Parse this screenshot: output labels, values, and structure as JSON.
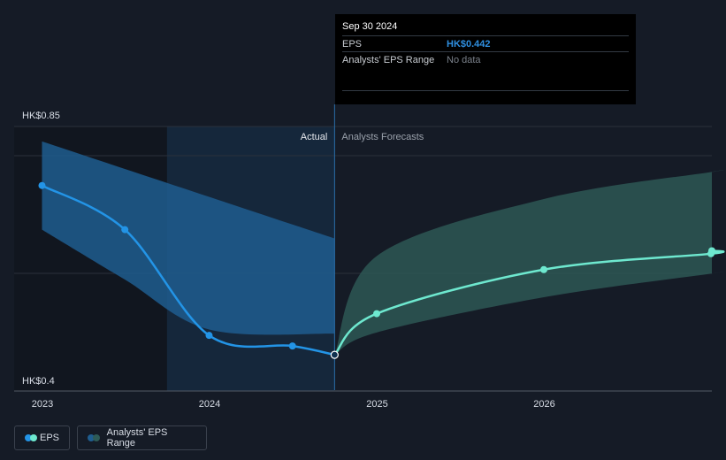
{
  "tooltip": {
    "date": "Sep 30 2024",
    "eps_label": "EPS",
    "eps_value": "HK$0.442",
    "range_label": "Analysts' EPS Range",
    "range_value": "No data"
  },
  "labels": {
    "actual": "Actual",
    "forecasts": "Analysts Forecasts"
  },
  "legend": {
    "eps": "EPS",
    "range": "Analysts' EPS Range"
  },
  "colors": {
    "background": "#151b26",
    "eps_actual": "#2394e6",
    "eps_forecast": "#6ee8cf",
    "range_actual": "#1f5d8f",
    "range_forecast": "#2e5b57"
  },
  "chart_data": {
    "type": "line",
    "y_axis": {
      "min": 0.4,
      "max": 0.85,
      "ticks": [
        "HK$0.85",
        "HK$0.4"
      ]
    },
    "x_axis": {
      "ticks": [
        "2023",
        "2024",
        "2025",
        "2026"
      ]
    },
    "series": [
      {
        "name": "EPS",
        "segment": "actual",
        "points": [
          {
            "date": "2022-12-31",
            "value": 0.73
          },
          {
            "date": "2023-06-30",
            "value": 0.655
          },
          {
            "date": "2023-12-31",
            "value": 0.475
          },
          {
            "date": "2024-06-30",
            "value": 0.457
          },
          {
            "date": "2024-09-30",
            "value": 0.442
          }
        ]
      },
      {
        "name": "EPS",
        "segment": "forecast",
        "points": [
          {
            "date": "2024-09-30",
            "value": 0.442
          },
          {
            "date": "2024-12-31",
            "value": 0.512
          },
          {
            "date": "2025-12-31",
            "value": 0.587
          },
          {
            "date": "2026-12-31",
            "value": 0.614
          }
        ]
      }
    ],
    "ranges": [
      {
        "name": "Analysts' EPS Range",
        "segment": "actual",
        "upper": [
          {
            "date": "2022-12-31",
            "value": 0.805
          },
          {
            "date": "2024-09-30",
            "value": 0.64
          }
        ],
        "lower": [
          {
            "date": "2022-12-31",
            "value": 0.655
          },
          {
            "date": "2023-06-30",
            "value": 0.57
          },
          {
            "date": "2023-12-31",
            "value": 0.485
          },
          {
            "date": "2024-09-30",
            "value": 0.478
          }
        ]
      },
      {
        "name": "Analysts' EPS Range",
        "segment": "forecast",
        "upper": [
          {
            "date": "2024-09-30",
            "value": 0.442
          },
          {
            "date": "2024-12-31",
            "value": 0.61
          },
          {
            "date": "2025-12-31",
            "value": 0.707
          },
          {
            "date": "2026-12-31",
            "value": 0.753
          }
        ],
        "lower": [
          {
            "date": "2024-09-30",
            "value": 0.442
          },
          {
            "date": "2024-12-31",
            "value": 0.48
          },
          {
            "date": "2025-12-31",
            "value": 0.54
          },
          {
            "date": "2026-12-31",
            "value": 0.58
          }
        ]
      }
    ],
    "grid": true,
    "legend_position": "bottom-left"
  }
}
